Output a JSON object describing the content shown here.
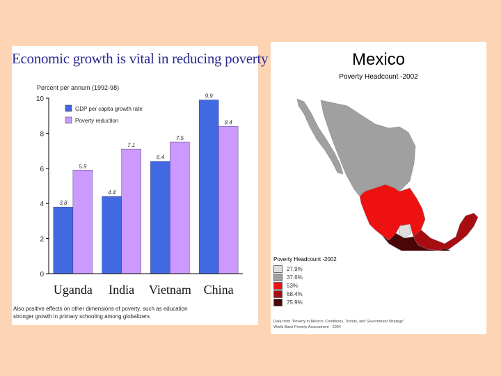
{
  "chart_panel": {
    "title": "Economic growth is vital in reducing poverty",
    "footnote_line1": "Also positive effects on other dimensions of poverty, such as education",
    "footnote_line2": "stronger growth in primary schooling among globalizers"
  },
  "chart_data": {
    "type": "bar",
    "title": "Economic growth is vital in reducing poverty",
    "ylabel": "Percent per annum (1992-98)",
    "xlabel": "",
    "categories": [
      "Uganda",
      "India",
      "Vietnam",
      "China"
    ],
    "series": [
      {
        "name": "GDP per capita growth rate",
        "values": [
          3.8,
          4.4,
          6.4,
          9.9
        ],
        "color": "#4169e1"
      },
      {
        "name": "Poverty reduction",
        "values": [
          5.9,
          7.1,
          7.5,
          8.4
        ],
        "color": "#cc99ff"
      }
    ],
    "value_labels": [
      [
        "3.8",
        "4.4",
        "6.4",
        "9.9"
      ],
      [
        "5.9",
        "7.1",
        "7.5",
        "8.4"
      ]
    ],
    "ylim": [
      0,
      10
    ],
    "yticks": [
      "0",
      "2",
      "4",
      "6",
      "8",
      "10"
    ],
    "legend_position": "top-left",
    "grid": false
  },
  "map_panel": {
    "title": "Mexico",
    "subtitle": "Poverty Headcount -2002",
    "legend_title": "Poverty Headcount -2002",
    "legend": [
      {
        "label": "27.9%",
        "color": "#dedede"
      },
      {
        "label": "37.6%",
        "color": "#a0a0a0"
      },
      {
        "label": "53%",
        "color": "#ee1111"
      },
      {
        "label": "68.4%",
        "color": "#a80d12"
      },
      {
        "label": "75.9%",
        "color": "#4a0606"
      }
    ],
    "source_line1": "Data from \"Poverty in Mexico: Conditions, Trends, and Government Strategy\"",
    "source_line2": "World Bank Poverty Assessment - 2004"
  }
}
